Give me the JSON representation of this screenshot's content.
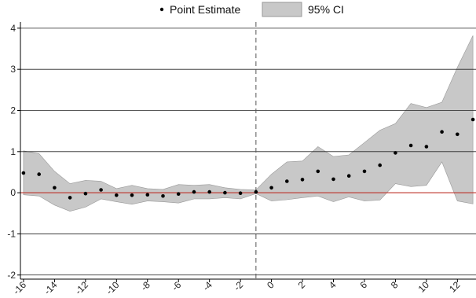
{
  "chart_data": {
    "type": "scatter",
    "legend": {
      "position": "top",
      "items": [
        {
          "label": "Point Estimate",
          "marker": "dot"
        },
        {
          "label": "95% CI",
          "marker": "shaded-box"
        }
      ]
    },
    "xlim": [
      -16.2,
      13.2
    ],
    "ylim": [
      -2.1,
      4.15
    ],
    "x_ticks": [
      -16,
      -14,
      -12,
      -10,
      -8,
      -6,
      -4,
      -2,
      0,
      2,
      4,
      6,
      8,
      10,
      12
    ],
    "y_ticks": [
      -2,
      -1,
      0,
      1,
      2,
      3,
      4
    ],
    "grid": "horizontal",
    "reference_line_y": 0,
    "reference_line_x": -1,
    "colors": {
      "points": "#000000",
      "ci_fill": "#c8c8c8",
      "ci_stroke": "#999999",
      "zero_line": "#c8281e",
      "grid": "#222222",
      "vline": "#555555"
    },
    "series": [
      {
        "name": "Point Estimate",
        "x": [
          -16,
          -15,
          -14,
          -13,
          -12,
          -11,
          -10,
          -9,
          -8,
          -7,
          -6,
          -5,
          -4,
          -3,
          -2,
          -1,
          0,
          1,
          2,
          3,
          4,
          5,
          6,
          7,
          8,
          9,
          10,
          11,
          12,
          13
        ],
        "y": [
          0.48,
          0.45,
          0.12,
          -0.12,
          -0.02,
          0.07,
          -0.06,
          -0.06,
          -0.05,
          -0.08,
          -0.03,
          0.02,
          0.02,
          0.0,
          -0.01,
          0.02,
          0.12,
          0.28,
          0.32,
          0.52,
          0.33,
          0.41,
          0.52,
          0.67,
          0.97,
          1.15,
          1.12,
          1.48,
          1.42,
          1.78
        ]
      },
      {
        "name": "95% CI",
        "x": [
          -16,
          -15,
          -14,
          -13,
          -12,
          -11,
          -10,
          -9,
          -8,
          -7,
          -6,
          -5,
          -4,
          -3,
          -2,
          -1,
          0,
          1,
          2,
          3,
          4,
          5,
          6,
          7,
          8,
          9,
          10,
          11,
          12,
          13
        ],
        "lower": [
          -0.05,
          -0.08,
          -0.3,
          -0.45,
          -0.35,
          -0.15,
          -0.22,
          -0.28,
          -0.2,
          -0.22,
          -0.25,
          -0.15,
          -0.15,
          -0.12,
          -0.15,
          -0.02,
          -0.2,
          -0.17,
          -0.12,
          -0.08,
          -0.22,
          -0.1,
          -0.2,
          -0.18,
          0.22,
          0.15,
          0.18,
          0.75,
          -0.2,
          -0.27
        ],
        "upper": [
          1.02,
          0.95,
          0.52,
          0.22,
          0.3,
          0.28,
          0.1,
          0.18,
          0.1,
          0.08,
          0.2,
          0.18,
          0.2,
          0.12,
          0.08,
          0.07,
          0.45,
          0.75,
          0.77,
          1.12,
          0.88,
          0.92,
          1.22,
          1.52,
          1.68,
          2.17,
          2.07,
          2.2,
          3.05,
          3.82
        ]
      }
    ]
  }
}
